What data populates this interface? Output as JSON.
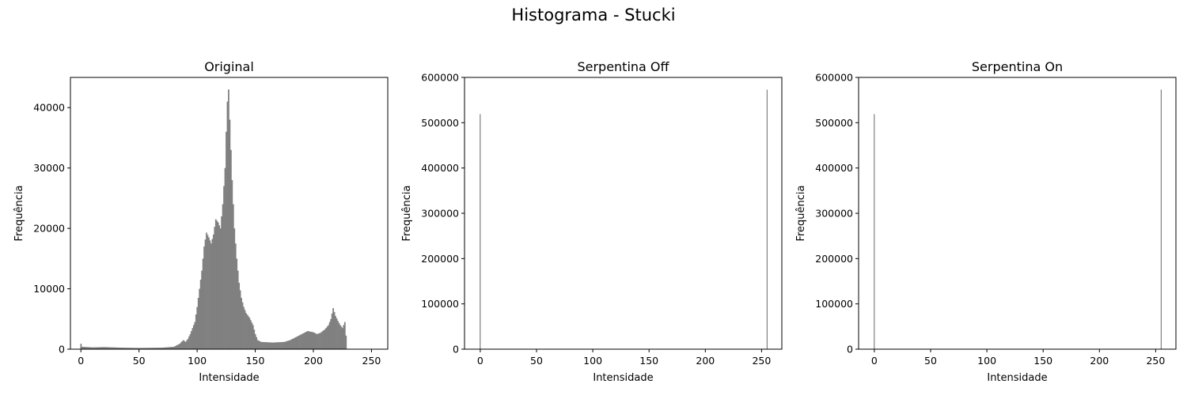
{
  "figure": {
    "suptitle": "Histograma - Stucki"
  },
  "chart_data": [
    {
      "type": "bar",
      "title": "Original",
      "xlabel": "Intensidade",
      "ylabel": "Frequência",
      "xlim": [
        -9,
        264
      ],
      "ylim": [
        0,
        45000
      ],
      "xticks": [
        0,
        50,
        100,
        150,
        200,
        250
      ],
      "yticks": [
        0,
        10000,
        20000,
        30000,
        40000
      ],
      "grid": false,
      "legend": "none",
      "bar_color": "#808080",
      "bin_width": 1,
      "points": [
        [
          0,
          900
        ],
        [
          1,
          400
        ],
        [
          10,
          300
        ],
        [
          20,
          350
        ],
        [
          35,
          250
        ],
        [
          50,
          200
        ],
        [
          70,
          250
        ],
        [
          80,
          400
        ],
        [
          85,
          900
        ],
        [
          88,
          1500
        ],
        [
          90,
          1200
        ],
        [
          92,
          1700
        ],
        [
          94,
          2500
        ],
        [
          96,
          3500
        ],
        [
          98,
          4500
        ],
        [
          100,
          7000
        ],
        [
          102,
          10000
        ],
        [
          104,
          13000
        ],
        [
          106,
          17000
        ],
        [
          108,
          19300
        ],
        [
          110,
          18500
        ],
        [
          112,
          17500
        ],
        [
          114,
          19000
        ],
        [
          116,
          21500
        ],
        [
          118,
          21000
        ],
        [
          120,
          20000
        ],
        [
          122,
          24000
        ],
        [
          124,
          30000
        ],
        [
          125,
          36000
        ],
        [
          126,
          41000
        ],
        [
          127,
          43000
        ],
        [
          128,
          38000
        ],
        [
          130,
          28000
        ],
        [
          132,
          20000
        ],
        [
          134,
          15000
        ],
        [
          136,
          11000
        ],
        [
          138,
          8500
        ],
        [
          140,
          7000
        ],
        [
          142,
          6000
        ],
        [
          145,
          5200
        ],
        [
          148,
          4000
        ],
        [
          150,
          2500
        ],
        [
          152,
          1500
        ],
        [
          155,
          1200
        ],
        [
          160,
          1150
        ],
        [
          165,
          1100
        ],
        [
          170,
          1150
        ],
        [
          175,
          1200
        ],
        [
          180,
          1500
        ],
        [
          185,
          2000
        ],
        [
          190,
          2500
        ],
        [
          195,
          3000
        ],
        [
          200,
          2800
        ],
        [
          203,
          2500
        ],
        [
          206,
          2700
        ],
        [
          210,
          3300
        ],
        [
          213,
          4000
        ],
        [
          215,
          5000
        ],
        [
          217,
          6800
        ],
        [
          219,
          5500
        ],
        [
          221,
          4700
        ],
        [
          223,
          4000
        ],
        [
          225,
          3500
        ],
        [
          227,
          4500
        ],
        [
          229,
          0
        ]
      ]
    },
    {
      "type": "bar",
      "title": "Serpentina Off",
      "xlabel": "Intensidade",
      "ylabel": "Frequência",
      "xlim": [
        -14,
        268
      ],
      "ylim": [
        0,
        600000
      ],
      "xticks": [
        0,
        50,
        100,
        150,
        200,
        250
      ],
      "yticks": [
        0,
        100000,
        200000,
        300000,
        400000,
        500000,
        600000
      ],
      "grid": false,
      "legend": "none",
      "bar_color": "#808080",
      "bin_width": 1,
      "points": [
        [
          0,
          519000
        ],
        [
          255,
          573000
        ]
      ]
    },
    {
      "type": "bar",
      "title": "Serpentina On",
      "xlabel": "Intensidade",
      "ylabel": "Frequência",
      "xlim": [
        -14,
        268
      ],
      "ylim": [
        0,
        600000
      ],
      "xticks": [
        0,
        50,
        100,
        150,
        200,
        250
      ],
      "yticks": [
        0,
        100000,
        200000,
        300000,
        400000,
        500000,
        600000
      ],
      "grid": false,
      "legend": "none",
      "bar_color": "#808080",
      "bin_width": 1,
      "points": [
        [
          0,
          519000
        ],
        [
          255,
          573000
        ]
      ]
    }
  ]
}
